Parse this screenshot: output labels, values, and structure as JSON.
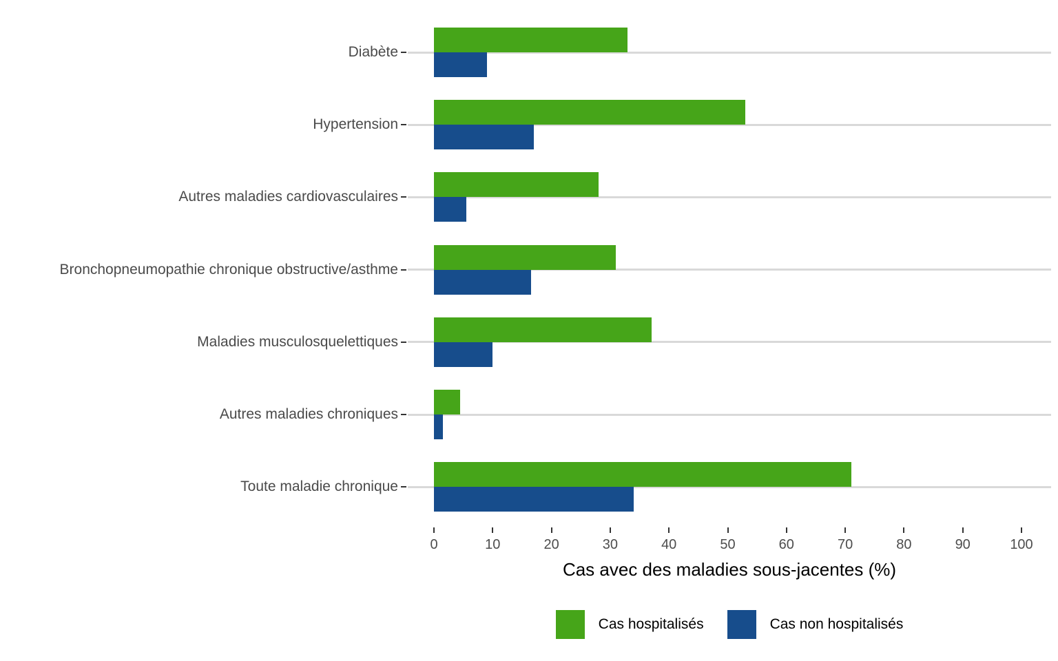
{
  "chart_data": {
    "type": "bar",
    "orientation": "horizontal",
    "title": "",
    "xlabel": "Cas avec des maladies sous-jacentes (%)",
    "ylabel": "",
    "xlim": [
      0,
      100
    ],
    "xticks": [
      0,
      10,
      20,
      30,
      40,
      50,
      60,
      70,
      80,
      90,
      100
    ],
    "grid": "horizontal light-gray line at each category",
    "legend_position": "bottom",
    "categories": [
      "Diabète",
      "Hypertension",
      "Autres maladies cardiovasculaires",
      "Bronchopneumopathie chronique obstructive/asthme",
      "Maladies musculosquelettiques",
      "Autres maladies chroniques",
      "Toute maladie chronique"
    ],
    "series": [
      {
        "name": "Cas hospitalisés",
        "color": "#46A519",
        "values": [
          33,
          53,
          28,
          31,
          37,
          4.5,
          71
        ]
      },
      {
        "name": "Cas non hospitalisés",
        "color": "#174D8C",
        "values": [
          9,
          17,
          5.5,
          16.5,
          10,
          1.5,
          34
        ]
      }
    ],
    "colors": {
      "gridline": "#d9d9d9",
      "tick": "#333333",
      "axis_text": "#4d4d4d",
      "background": "#ffffff"
    }
  }
}
